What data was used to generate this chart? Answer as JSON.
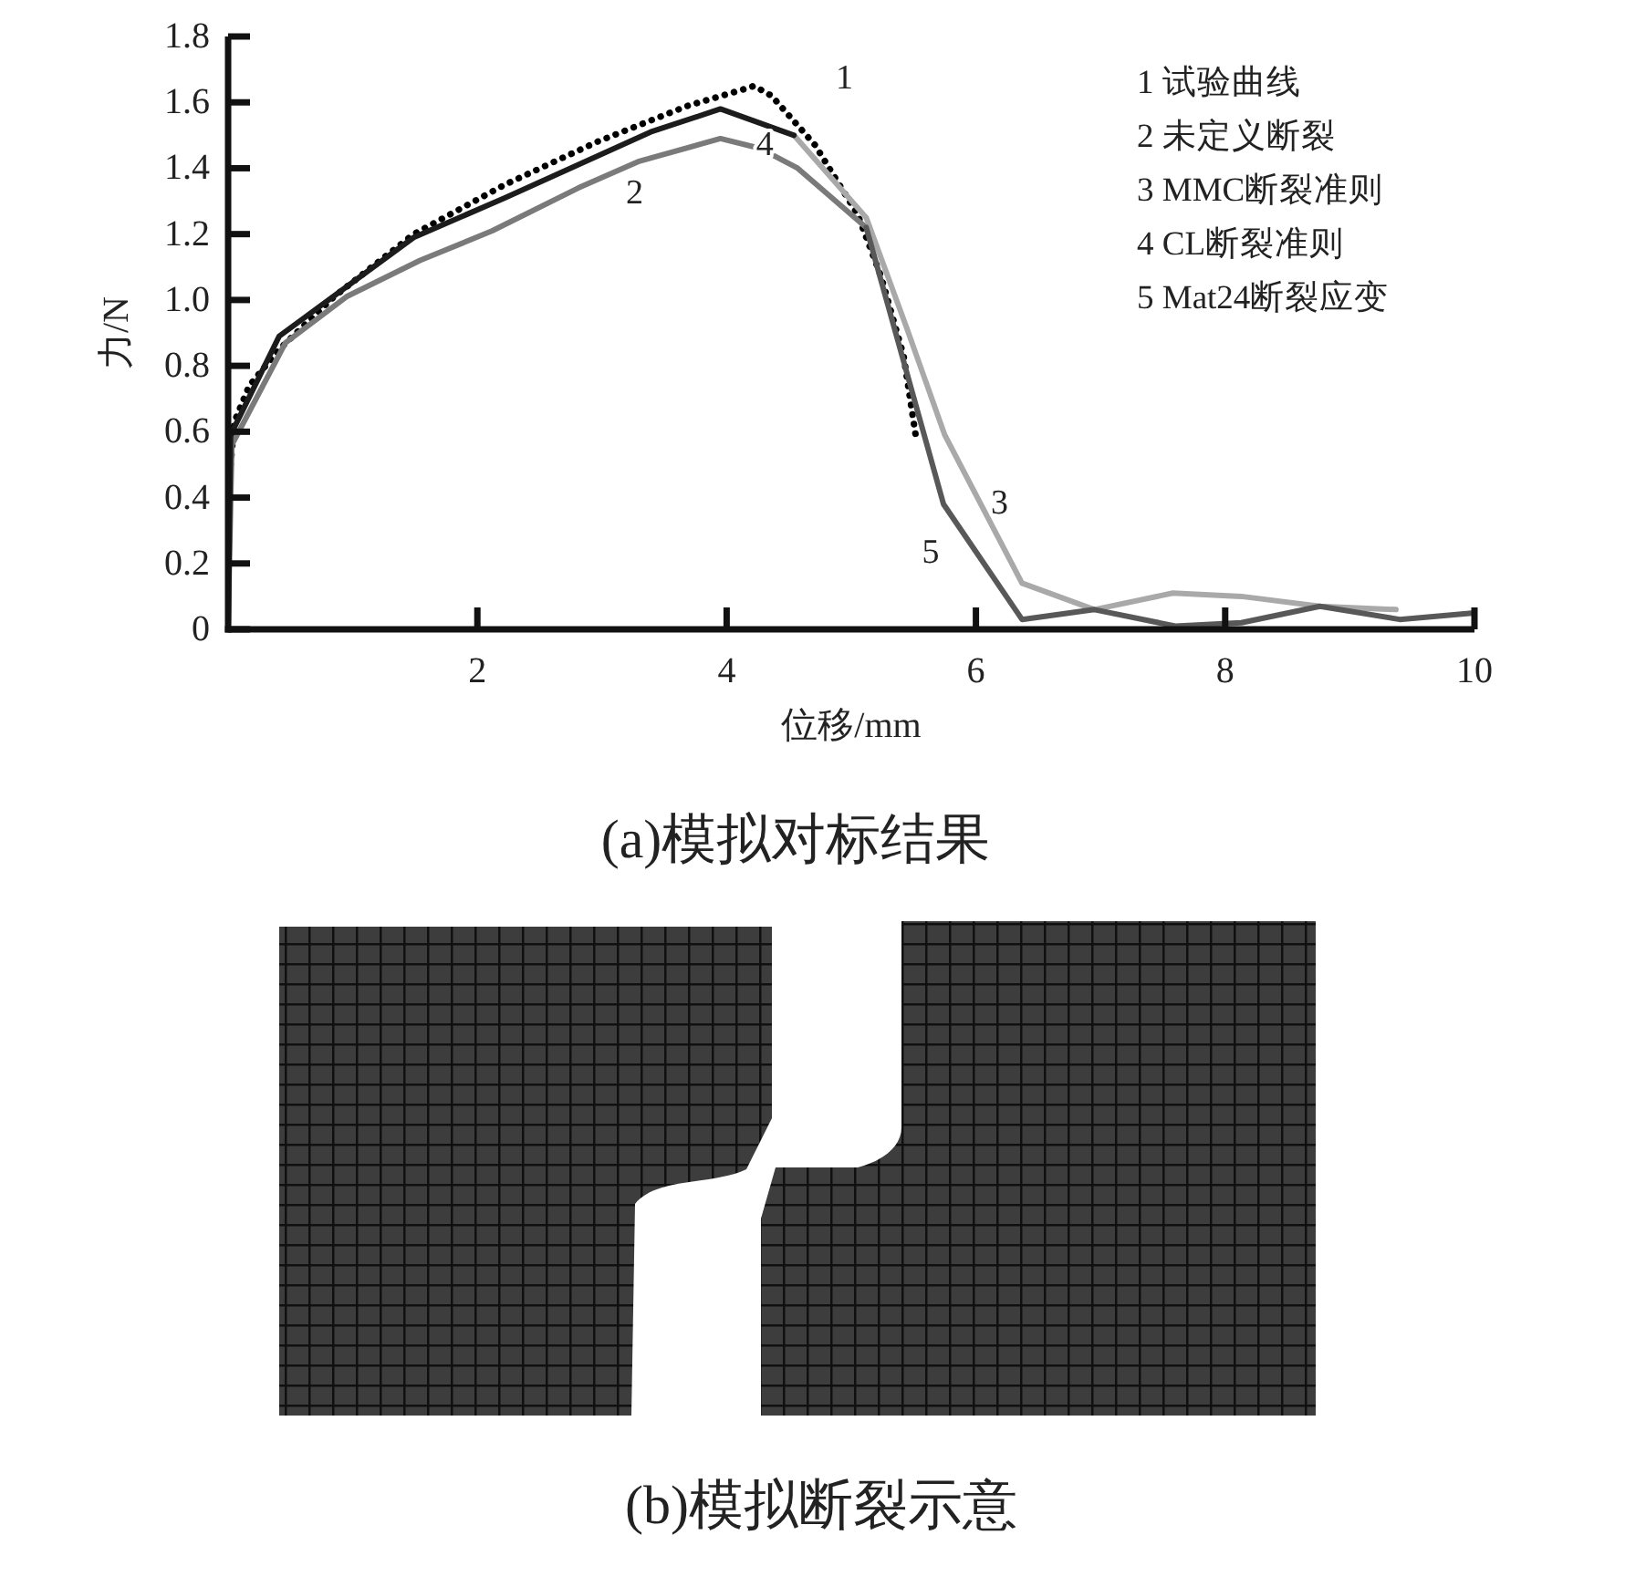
{
  "chart_data": {
    "type": "line",
    "title": "(a)模拟对标结果",
    "xlabel": "位移/mm",
    "ylabel": "力/N",
    "xlim": [
      0,
      10
    ],
    "ylim": [
      0,
      1.8
    ],
    "xticks": [
      2,
      4,
      6,
      8,
      10
    ],
    "yticks": [
      0,
      0.2,
      0.4,
      0.6,
      0.8,
      {
        "value": 1,
        "label": "1.0"
      },
      1.2,
      1.4,
      1.6,
      1.8
    ],
    "series": [
      {
        "color": "#000000",
        "line_style": "dotted",
        "x": [
          0.02,
          0.05,
          0.17,
          0.41,
          0.85,
          1.49,
          2.22,
          2.96,
          3.69,
          4.14,
          4.22,
          4.36,
          4.71,
          5.05,
          5.24,
          5.42,
          5.52
        ],
        "values": [
          0.5,
          0.63,
          0.74,
          0.85,
          1.01,
          1.2,
          1.35,
          1.48,
          1.59,
          1.64,
          1.65,
          1.62,
          1.47,
          1.26,
          1.07,
          0.83,
          0.58
        ]
      },
      {
        "color": "#7a7a7a",
        "line_style": "solid",
        "x": [
          0,
          0.03,
          0.46,
          0.95,
          1.54,
          2.12,
          2.81,
          3.29,
          3.95,
          4.27,
          4.57,
          5.12
        ],
        "values": [
          0,
          0.56,
          0.87,
          1.01,
          1.12,
          1.21,
          1.34,
          1.42,
          1.49,
          1.46,
          1.4,
          1.22
        ]
      },
      {
        "color": "#a9a9a9",
        "line_style": "solid",
        "x": [
          4.54,
          5.12,
          5.44,
          5.75,
          6.37,
          6.95,
          7.58,
          8.13,
          8.76,
          9.37
        ],
        "values": [
          1.5,
          1.25,
          0.92,
          0.59,
          0.14,
          0.06,
          0.11,
          0.1,
          0.07,
          0.06
        ]
      },
      {
        "color": "#1c1c1c",
        "line_style": "solid",
        "x": [
          0,
          0.02,
          0.41,
          1.49,
          2.22,
          3.39,
          3.95,
          4.54
        ],
        "values": [
          0,
          0.59,
          0.89,
          1.19,
          1.31,
          1.51,
          1.58,
          1.5
        ]
      },
      {
        "color": "#585858",
        "line_style": "solid",
        "x": [
          5.12,
          5.74,
          6.37,
          6.95,
          7.6,
          8.13,
          8.76,
          9.4,
          10
        ],
        "values": [
          1.22,
          0.38,
          0.03,
          0.06,
          0.01,
          0.02,
          0.07,
          0.03,
          0.05
        ]
      }
    ],
    "annotations": [
      {
        "text": "1",
        "x": 4.36,
        "y": 1.62
      },
      {
        "text": "2",
        "x": 3.29,
        "y": 1.42
      },
      {
        "text": "3",
        "x": 5.75,
        "y": 0.59
      },
      {
        "text": "4",
        "x": 4.54,
        "y": 1.5
      },
      {
        "text": "5",
        "x": 5.74,
        "y": 0.38
      },
      "1 试验曲线",
      "2 未定义断裂",
      "3 MMC断裂准则",
      "4 CL断裂准则",
      "5 Mat24断裂应变",
      "(b)模拟断裂示意"
    ]
  }
}
